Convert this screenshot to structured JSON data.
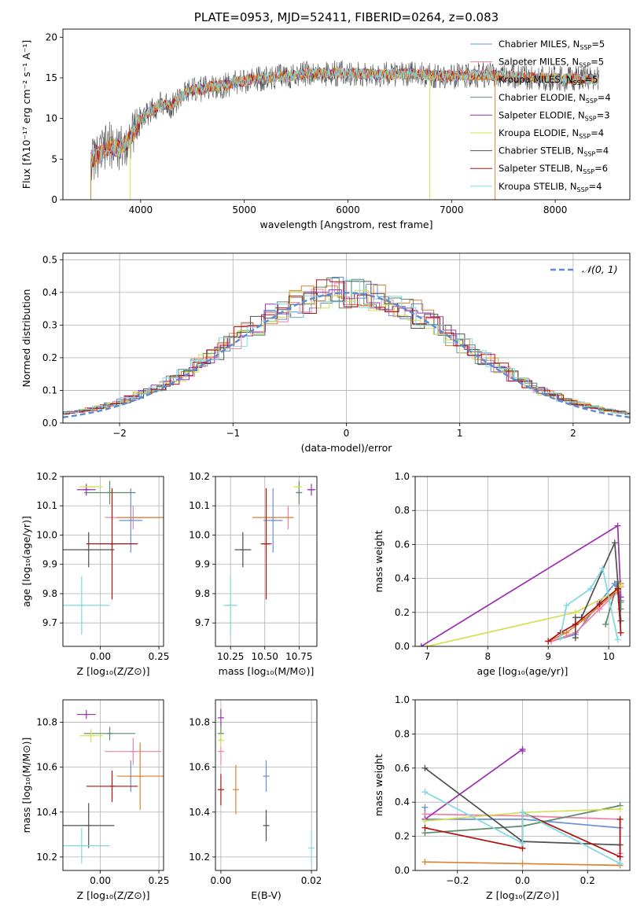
{
  "chart_data": [
    {
      "id": "spectrum",
      "type": "line",
      "title": "PLATE=0953, MJD=52411, FIBERID=0264, z=0.083",
      "xlabel": "wavelength [Angstrom, rest frame]",
      "ylabel": "Flux [fλ10⁻¹⁷ erg cm⁻² s⁻¹ A⁻¹]",
      "xlim": [
        3250,
        8720
      ],
      "ylim": [
        0,
        21
      ],
      "xticks": [
        4000,
        5000,
        6000,
        7000,
        8000
      ],
      "yticks": [
        0,
        5,
        10,
        15,
        20
      ],
      "grid": false,
      "legend_position": "upper-right",
      "continuum": {
        "x": [
          3520,
          3600,
          3700,
          3800,
          3900,
          4000,
          4100,
          4200,
          4300,
          4400,
          4500,
          4600,
          4700,
          4800,
          4900,
          5000,
          5200,
          5400,
          5600,
          5800,
          6000,
          6200,
          6400,
          6600,
          6800,
          7000,
          7200,
          7400,
          7600,
          7800,
          8000,
          8200,
          8400
        ],
        "y": [
          5.0,
          5.5,
          6.8,
          6.2,
          7.5,
          10.0,
          11.0,
          11.8,
          11.6,
          12.8,
          13.5,
          13.6,
          14.0,
          14.0,
          14.4,
          14.6,
          15.0,
          15.2,
          15.5,
          15.5,
          15.6,
          15.4,
          15.4,
          15.5,
          15.3,
          15.2,
          15.4,
          15.3,
          15.2,
          15.0,
          14.9,
          14.9,
          14.8
        ]
      },
      "series": [
        {
          "name": "Chabrier MILES, N_SSP=5",
          "color": "#6a8fd8"
        },
        {
          "name": "Salpeter MILES, N_SSP=5",
          "color": "#f080a8"
        },
        {
          "name": "Kroupa MILES, N_SSP=5",
          "color": "#e07f30"
        },
        {
          "name": "Chabrier ELODIE, N_SSP=4",
          "color": "#5a8a6a"
        },
        {
          "name": "Salpeter ELODIE, N_SSP=3",
          "color": "#9b30b0"
        },
        {
          "name": "Kroupa ELODIE, N_SSP=4",
          "color": "#d4e050"
        },
        {
          "name": "Chabrier STELIB, N_SSP=4",
          "color": "#505050"
        },
        {
          "name": "Salpeter STELIB, N_SSP=6",
          "color": "#b01010"
        },
        {
          "name": "Kroupa STELIB, N_SSP=4",
          "color": "#80d8e0"
        }
      ]
    },
    {
      "id": "residuals",
      "type": "line",
      "xlabel": "(data-model)/error",
      "ylabel": "Normed distribution",
      "xlim": [
        -2.5,
        2.5
      ],
      "ylim": [
        0,
        0.52
      ],
      "xticks": [
        -2,
        -1,
        0,
        1,
        2
      ],
      "yticks": [
        0.0,
        0.1,
        0.2,
        0.3,
        0.4,
        0.5
      ],
      "grid": true,
      "legend": "𝒩(0, 1)",
      "legend_position": "upper-right",
      "gaussian": {
        "mean": 0,
        "sigma": 1,
        "color": "#5b8bd0"
      }
    },
    {
      "id": "age-vs-Z",
      "type": "scatter",
      "xlabel": "Z [log₁₀(Z/Z⊙)]",
      "ylabel": "age  [log₁₀(age/yr)]",
      "xlim": [
        -0.16,
        0.27
      ],
      "ylim": [
        9.62,
        10.2
      ],
      "xticks": [
        0.0,
        0.25
      ],
      "xticklabels": [
        "0.00",
        "0.25"
      ],
      "yticks": [
        9.7,
        9.8,
        9.9,
        10.0,
        10.1,
        10.2
      ],
      "grid": true,
      "points": [
        {
          "x": 0.13,
          "y": 10.05,
          "xerr": 0.05,
          "yerr": 0.11,
          "color": "#6a8fd8"
        },
        {
          "x": 0.14,
          "y": 10.06,
          "xerr": 0.12,
          "yerr": 0.04,
          "color": "#f080a8"
        },
        {
          "x": 0.17,
          "y": 10.06,
          "xerr": 0.1,
          "yerr": 0.0,
          "color": "#e07f30"
        },
        {
          "x": 0.04,
          "y": 10.145,
          "xerr": 0.11,
          "yerr": 0.04,
          "color": "#5a8a6a"
        },
        {
          "x": -0.06,
          "y": 10.155,
          "xerr": 0.04,
          "yerr": 0.02,
          "color": "#9b30b0"
        },
        {
          "x": -0.04,
          "y": 10.165,
          "xerr": 0.05,
          "yerr": 0.0,
          "color": "#d4e050"
        },
        {
          "x": -0.05,
          "y": 9.95,
          "xerr": 0.11,
          "yerr": 0.06,
          "color": "#505050"
        },
        {
          "x": 0.05,
          "y": 9.97,
          "xerr": 0.11,
          "yerr": 0.19,
          "color": "#b01010"
        },
        {
          "x": -0.08,
          "y": 9.76,
          "xerr": 0.12,
          "yerr": 0.1,
          "color": "#80d8e0"
        }
      ]
    },
    {
      "id": "age-vs-mass",
      "type": "scatter",
      "xlabel": "mass [log₁₀(M/M⊙)]",
      "ylabel": "",
      "xlim": [
        10.14,
        10.88
      ],
      "ylim": [
        9.62,
        10.2
      ],
      "xticks": [
        10.25,
        10.5,
        10.75
      ],
      "xticklabels": [
        "10.25",
        "10.50",
        "10.75"
      ],
      "yticks": [
        9.7,
        9.8,
        9.9,
        10.0,
        10.1,
        10.2
      ],
      "grid": true,
      "points": [
        {
          "x": 10.56,
          "y": 10.05,
          "xerr": 0.07,
          "yerr": 0.11,
          "color": "#6a8fd8"
        },
        {
          "x": 10.67,
          "y": 10.06,
          "xerr": 0.0,
          "yerr": 0.04,
          "color": "#f080a8"
        },
        {
          "x": 10.56,
          "y": 10.06,
          "xerr": 0.15,
          "yerr": 0.0,
          "color": "#e07f30"
        },
        {
          "x": 10.75,
          "y": 10.145,
          "xerr": 0.02,
          "yerr": 0.04,
          "color": "#5a8a6a"
        },
        {
          "x": 10.84,
          "y": 10.155,
          "xerr": 0.03,
          "yerr": 0.02,
          "color": "#9b30b0"
        },
        {
          "x": 10.74,
          "y": 10.165,
          "xerr": 0.03,
          "yerr": 0.0,
          "color": "#d4e050"
        },
        {
          "x": 10.34,
          "y": 9.95,
          "xerr": 0.06,
          "yerr": 0.06,
          "color": "#505050"
        },
        {
          "x": 10.51,
          "y": 9.97,
          "xerr": 0.04,
          "yerr": 0.19,
          "color": "#b01010"
        },
        {
          "x": 10.25,
          "y": 9.76,
          "xerr": 0.05,
          "yerr": 0.1,
          "color": "#80d8e0"
        }
      ]
    },
    {
      "id": "mass-weight-vs-age",
      "type": "line",
      "xlabel": "age  [log₁₀(age/yr)]",
      "ylabel": "mass weight",
      "xlim": [
        6.8,
        10.35
      ],
      "ylim": [
        0,
        1.0
      ],
      "xticks": [
        7,
        8,
        9,
        10
      ],
      "yticks": [
        0.0,
        0.2,
        0.4,
        0.6,
        0.8,
        1.0
      ],
      "grid": true,
      "series": [
        {
          "color": "#6a8fd8",
          "x": [
            9.05,
            9.45,
            9.85,
            10.1,
            10.2
          ],
          "y": [
            0.03,
            0.07,
            0.26,
            0.37,
            0.27
          ]
        },
        {
          "color": "#f080a8",
          "x": [
            9.05,
            9.45,
            9.85,
            10.15,
            10.2
          ],
          "y": [
            0.03,
            0.08,
            0.22,
            0.32,
            0.35
          ]
        },
        {
          "color": "#e07f30",
          "x": [
            9.0,
            9.3,
            9.6,
            10.15,
            10.2
          ],
          "y": [
            0.03,
            0.08,
            0.16,
            0.33,
            0.37
          ]
        },
        {
          "color": "#5a8a6a",
          "x": [
            9.95,
            10.15,
            10.2,
            10.2
          ],
          "y": [
            0.13,
            0.38,
            0.22,
            0.26
          ]
        },
        {
          "color": "#9b30b0",
          "x": [
            6.9,
            10.15,
            10.2
          ],
          "y": [
            0.0,
            0.71,
            0.29
          ]
        },
        {
          "color": "#d4e050",
          "x": [
            7.0,
            9.45,
            10.15,
            10.2
          ],
          "y": [
            0.0,
            0.2,
            0.33,
            0.36
          ]
        },
        {
          "color": "#505050",
          "x": [
            9.45,
            9.45,
            9.55,
            10.1,
            10.2
          ],
          "y": [
            0.05,
            0.17,
            0.17,
            0.61,
            0.15
          ]
        },
        {
          "color": "#b01010",
          "x": [
            9.0,
            9.2,
            9.45,
            9.85,
            10.15,
            10.2
          ],
          "y": [
            0.03,
            0.08,
            0.13,
            0.25,
            0.34,
            0.08
          ]
        },
        {
          "color": "#80d8e0",
          "x": [
            9.2,
            9.3,
            9.7,
            9.9,
            10.15
          ],
          "y": [
            0.05,
            0.24,
            0.34,
            0.46,
            0.04
          ]
        }
      ]
    },
    {
      "id": "mass-vs-Z",
      "type": "scatter",
      "xlabel": "Z [log₁₀(Z/Z⊙)]",
      "ylabel": "mass [log₁₀(M/M⊙)]",
      "xlim": [
        -0.16,
        0.27
      ],
      "ylim": [
        10.14,
        10.9
      ],
      "xticks": [
        0.0,
        0.25
      ],
      "xticklabels": [
        "0.00",
        "0.25"
      ],
      "yticks": [
        10.2,
        10.4,
        10.6,
        10.8
      ],
      "grid": true,
      "points": [
        {
          "x": 0.13,
          "y": 10.56,
          "xerr": 0.0,
          "yerr": 0.07,
          "color": "#6a8fd8"
        },
        {
          "x": 0.14,
          "y": 10.67,
          "xerr": 0.12,
          "yerr": 0.06,
          "color": "#f080a8"
        },
        {
          "x": 0.17,
          "y": 10.56,
          "xerr": 0.1,
          "yerr": 0.15,
          "color": "#e07f30"
        },
        {
          "x": 0.04,
          "y": 10.75,
          "xerr": 0.11,
          "yerr": 0.03,
          "color": "#5a8a6a"
        },
        {
          "x": -0.06,
          "y": 10.835,
          "xerr": 0.04,
          "yerr": 0.02,
          "color": "#9b30b0"
        },
        {
          "x": -0.04,
          "y": 10.74,
          "xerr": 0.05,
          "yerr": 0.03,
          "color": "#d4e050"
        },
        {
          "x": -0.05,
          "y": 10.34,
          "xerr": 0.11,
          "yerr": 0.1,
          "color": "#505050"
        },
        {
          "x": 0.05,
          "y": 10.515,
          "xerr": 0.11,
          "yerr": 0.07,
          "color": "#b01010"
        },
        {
          "x": -0.08,
          "y": 10.25,
          "xerr": 0.12,
          "yerr": 0.08,
          "color": "#80d8e0"
        }
      ]
    },
    {
      "id": "mass-vs-EBV",
      "type": "scatter",
      "xlabel": "E(B-V)",
      "ylabel": "",
      "xlim": [
        -0.0012,
        0.0212
      ],
      "ylim": [
        10.14,
        10.9
      ],
      "xticks": [
        0.0,
        0.02
      ],
      "xticklabels": [
        "0.00",
        "0.02"
      ],
      "yticks": [
        10.2,
        10.4,
        10.6,
        10.8
      ],
      "grid": true,
      "points": [
        {
          "x": 0.01,
          "y": 10.56,
          "xerr": 0.0,
          "yerr": 0.07,
          "color": "#6a8fd8"
        },
        {
          "x": 0.0,
          "y": 10.67,
          "xerr": 0.0,
          "yerr": 0.06,
          "color": "#f080a8"
        },
        {
          "x": 0.0033,
          "y": 10.5,
          "xerr": 0.0,
          "yerr": 0.11,
          "color": "#e07f30"
        },
        {
          "x": 0.0,
          "y": 10.75,
          "xerr": 0.0,
          "yerr": 0.03,
          "color": "#5a8a6a"
        },
        {
          "x": 0.0,
          "y": 10.82,
          "xerr": 0.0,
          "yerr": 0.04,
          "color": "#9b30b0"
        },
        {
          "x": 0.0,
          "y": 10.72,
          "xerr": 0.0,
          "yerr": 0.03,
          "color": "#d4e050"
        },
        {
          "x": 0.01,
          "y": 10.34,
          "xerr": 0.0,
          "yerr": 0.07,
          "color": "#505050"
        },
        {
          "x": 0.0,
          "y": 10.5,
          "xerr": 0.0,
          "yerr": 0.07,
          "color": "#b01010"
        },
        {
          "x": 0.02,
          "y": 10.24,
          "xerr": 0.0,
          "yerr": 0.08,
          "color": "#80d8e0"
        }
      ]
    },
    {
      "id": "mass-weight-vs-Z",
      "type": "line",
      "xlabel": "Z [log₁₀(Z/Z⊙)]",
      "ylabel": "mass weight",
      "xlim": [
        -0.33,
        0.33
      ],
      "ylim": [
        0,
        1.0
      ],
      "xticks": [
        -0.2,
        0.0,
        0.2
      ],
      "xticklabels": [
        "−0.2",
        "0.0",
        "0.2"
      ],
      "yticks": [
        0.0,
        0.2,
        0.4,
        0.6,
        0.8,
        1.0
      ],
      "grid": true,
      "series": [
        {
          "color": "#6a8fd8",
          "x": [
            -0.3,
            -0.3,
            0.0,
            0.3,
            0.3
          ],
          "y": [
            0.37,
            0.3,
            0.3,
            0.25,
            0.03
          ]
        },
        {
          "color": "#f080a8",
          "x": [
            -0.3,
            0.0,
            0.3,
            0.3
          ],
          "y": [
            0.33,
            0.32,
            0.3,
            0.1
          ]
        },
        {
          "color": "#e07f30",
          "x": [
            -0.3,
            0.0,
            0.3
          ],
          "y": [
            0.05,
            0.04,
            0.03
          ]
        },
        {
          "color": "#5a8a6a",
          "x": [
            -0.3,
            0.0,
            0.3
          ],
          "y": [
            0.22,
            0.26,
            0.38
          ]
        },
        {
          "color": "#9b30b0",
          "x": [
            -0.3,
            0.0,
            0.0
          ],
          "y": [
            0.3,
            0.71,
            0.7
          ]
        },
        {
          "color": "#d4e050",
          "x": [
            -0.3,
            0.0,
            0.3
          ],
          "y": [
            0.29,
            0.34,
            0.36
          ]
        },
        {
          "color": "#505050",
          "x": [
            -0.3,
            0.0,
            0.3
          ],
          "y": [
            0.6,
            0.17,
            0.15
          ]
        },
        {
          "color": "#b01010",
          "x": [
            -0.3,
            0.0,
            0.0,
            0.3,
            0.3
          ],
          "y": [
            0.25,
            0.13,
            0.34,
            0.08,
            0.3
          ]
        },
        {
          "color": "#80d8e0",
          "x": [
            -0.3,
            0.0,
            0.0,
            0.3
          ],
          "y": [
            0.46,
            0.16,
            0.34,
            0.04
          ]
        }
      ]
    }
  ],
  "legend_labels": [
    {
      "base": "Chabrier MILES, N",
      "sub": "SSP",
      "tail": "=5"
    },
    {
      "base": "Salpeter MILES, N",
      "sub": "SSP",
      "tail": "=5"
    },
    {
      "base": "Kroupa MILES, N",
      "sub": "SSP",
      "tail": "=5"
    },
    {
      "base": "Chabrier ELODIE, N",
      "sub": "SSP",
      "tail": "=4"
    },
    {
      "base": "Salpeter ELODIE, N",
      "sub": "SSP",
      "tail": "=3"
    },
    {
      "base": "Kroupa ELODIE, N",
      "sub": "SSP",
      "tail": "=4"
    },
    {
      "base": "Chabrier STELIB, N",
      "sub": "SSP",
      "tail": "=4"
    },
    {
      "base": "Salpeter STELIB, N",
      "sub": "SSP",
      "tail": "=6"
    },
    {
      "base": "Kroupa STELIB, N",
      "sub": "SSP",
      "tail": "=4"
    }
  ]
}
